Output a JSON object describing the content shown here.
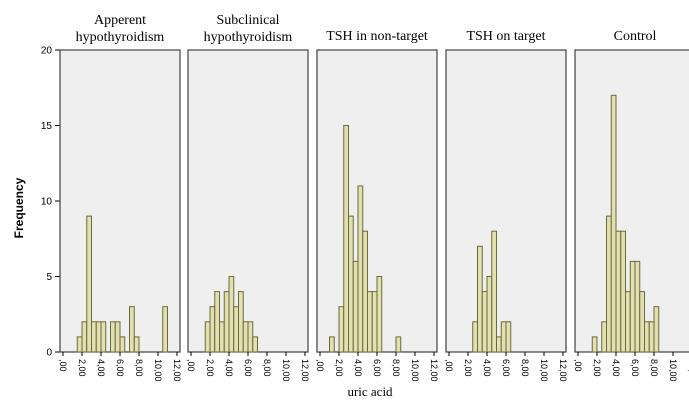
{
  "chart_data": {
    "type": "bar",
    "subtype": "faceted-histogram",
    "xlabel": "uric acid",
    "ylabel": "Frequency",
    "ylim": [
      0,
      20
    ],
    "yticks": [
      "0",
      "5",
      "10",
      "15",
      "20"
    ],
    "xlim": [
      0,
      12
    ],
    "bin_width": 0.5,
    "xticks": [
      {
        "value": 0,
        "label": ",00"
      },
      {
        "value": 2,
        "label": "2,00"
      },
      {
        "value": 4,
        "label": "4,00"
      },
      {
        "value": 6,
        "label": "6,00"
      },
      {
        "value": 8,
        "label": "8,00"
      },
      {
        "value": 10,
        "label": "10,00"
      },
      {
        "value": 12,
        "label": "12,00"
      }
    ],
    "grid": false,
    "colors": {
      "bar_fill": "#e2dfb0",
      "bar_stroke": "#6b6a3c",
      "panel_bg": "#efefef",
      "panel_border": "#404040"
    },
    "panels": [
      {
        "title": [
          "Apperent",
          "hypothyroidism"
        ],
        "bins": [
          {
            "x0": 1.5,
            "value": 1
          },
          {
            "x0": 2.0,
            "value": 2
          },
          {
            "x0": 2.5,
            "value": 9
          },
          {
            "x0": 3.0,
            "value": 2
          },
          {
            "x0": 3.5,
            "value": 2
          },
          {
            "x0": 4.0,
            "value": 2
          },
          {
            "x0": 5.0,
            "value": 2
          },
          {
            "x0": 5.5,
            "value": 2
          },
          {
            "x0": 6.0,
            "value": 1
          },
          {
            "x0": 7.0,
            "value": 3
          },
          {
            "x0": 7.5,
            "value": 1
          },
          {
            "x0": 10.5,
            "value": 3
          }
        ]
      },
      {
        "title": [
          "Subclinical",
          "hypothyroidism"
        ],
        "bins": [
          {
            "x0": 1.5,
            "value": 2
          },
          {
            "x0": 2.0,
            "value": 3
          },
          {
            "x0": 2.5,
            "value": 4
          },
          {
            "x0": 3.0,
            "value": 2
          },
          {
            "x0": 3.5,
            "value": 4
          },
          {
            "x0": 4.0,
            "value": 5
          },
          {
            "x0": 4.5,
            "value": 3
          },
          {
            "x0": 5.0,
            "value": 4
          },
          {
            "x0": 5.5,
            "value": 2
          },
          {
            "x0": 6.0,
            "value": 2
          },
          {
            "x0": 6.5,
            "value": 1
          }
        ]
      },
      {
        "title": [
          "TSH in non-target"
        ],
        "bins": [
          {
            "x0": 1.0,
            "value": 1
          },
          {
            "x0": 2.0,
            "value": 3
          },
          {
            "x0": 2.5,
            "value": 15
          },
          {
            "x0": 3.0,
            "value": 9
          },
          {
            "x0": 3.5,
            "value": 6
          },
          {
            "x0": 4.0,
            "value": 11
          },
          {
            "x0": 4.5,
            "value": 8
          },
          {
            "x0": 5.0,
            "value": 4
          },
          {
            "x0": 5.5,
            "value": 4
          },
          {
            "x0": 6.0,
            "value": 5
          },
          {
            "x0": 8.0,
            "value": 1
          }
        ]
      },
      {
        "title": [
          "TSH on target"
        ],
        "bins": [
          {
            "x0": 2.5,
            "value": 2
          },
          {
            "x0": 3.0,
            "value": 7
          },
          {
            "x0": 3.5,
            "value": 4
          },
          {
            "x0": 4.0,
            "value": 5
          },
          {
            "x0": 4.5,
            "value": 8
          },
          {
            "x0": 5.0,
            "value": 1
          },
          {
            "x0": 5.5,
            "value": 2
          },
          {
            "x0": 6.0,
            "value": 2
          }
        ]
      },
      {
        "title": [
          "Control"
        ],
        "bins": [
          {
            "x0": 1.5,
            "value": 1
          },
          {
            "x0": 2.5,
            "value": 2
          },
          {
            "x0": 3.0,
            "value": 9
          },
          {
            "x0": 3.5,
            "value": 17
          },
          {
            "x0": 4.0,
            "value": 8
          },
          {
            "x0": 4.5,
            "value": 8
          },
          {
            "x0": 5.0,
            "value": 4
          },
          {
            "x0": 5.5,
            "value": 6
          },
          {
            "x0": 6.0,
            "value": 6
          },
          {
            "x0": 6.5,
            "value": 4
          },
          {
            "x0": 7.0,
            "value": 2
          },
          {
            "x0": 7.5,
            "value": 2
          },
          {
            "x0": 8.0,
            "value": 3
          }
        ]
      }
    ]
  }
}
